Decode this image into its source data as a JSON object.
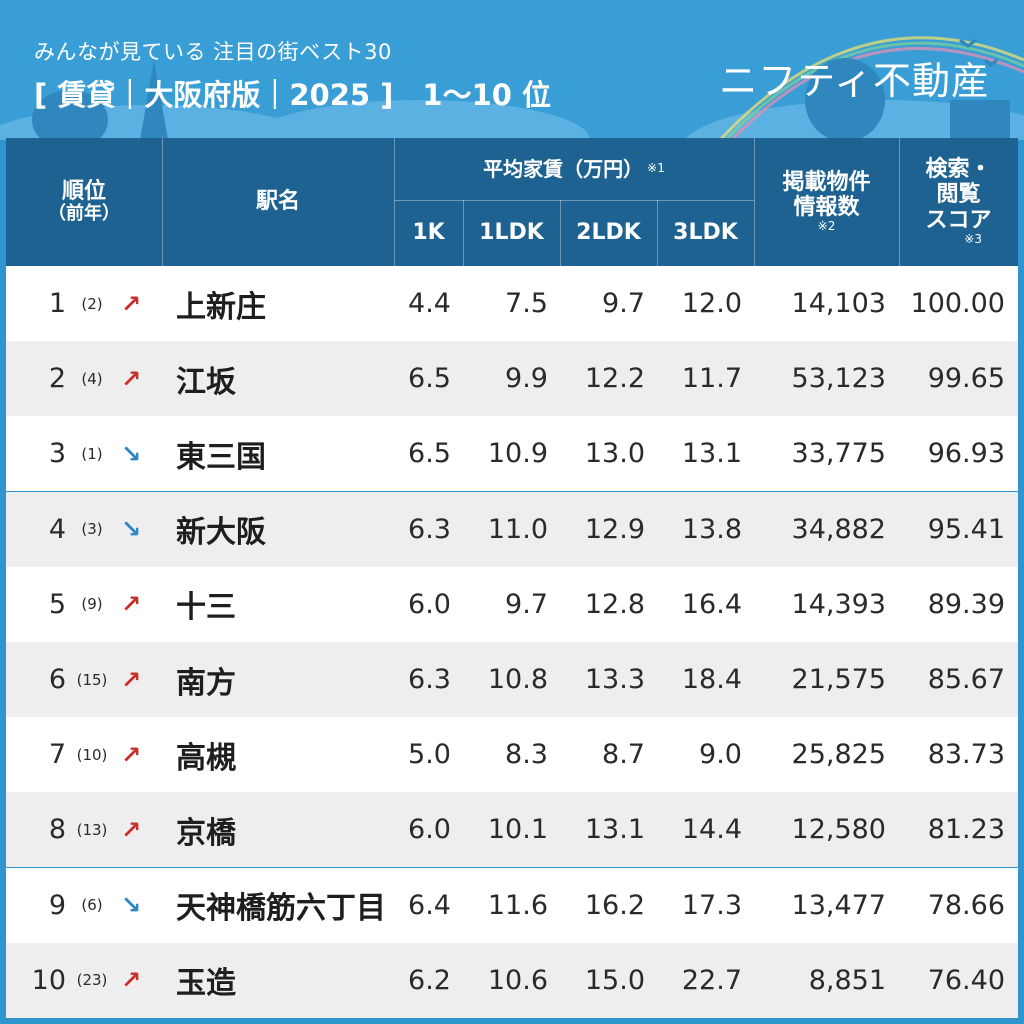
{
  "header": {
    "subtitle": "みんなが見ている 注目の街ベスト30",
    "title": "[ 賃貸｜大阪府版｜2025 ]　1〜10 位",
    "logo": "ニフティ不動産"
  },
  "table": {
    "headers": {
      "rank": "順位",
      "rank_prev": "（前年）",
      "station": "駅名",
      "rent_group": "平均家賃（万円）",
      "rent_note": "※1",
      "k1": "1K",
      "ldk1": "1LDK",
      "ldk2": "2LDK",
      "ldk3": "3LDK",
      "listings_line1": "掲載物件",
      "listings_line2": "情報数",
      "listings_note": "※2",
      "score_line1": "検索・",
      "score_line2": "閲覧",
      "score_line3": "スコア",
      "score_note": "※3"
    },
    "rows": [
      {
        "rank": "1",
        "prev": "(2)",
        "trend": "up",
        "arrow": "↗",
        "station": "上新庄",
        "k1": "4.4",
        "ldk1": "7.5",
        "ldk2": "9.7",
        "ldk3": "12.0",
        "listings": "14,103",
        "score": "100.00"
      },
      {
        "rank": "2",
        "prev": "(4)",
        "trend": "up",
        "arrow": "↗",
        "station": "江坂",
        "k1": "6.5",
        "ldk1": "9.9",
        "ldk2": "12.2",
        "ldk3": "11.7",
        "listings": "53,123",
        "score": "99.65"
      },
      {
        "rank": "3",
        "prev": "(1)",
        "trend": "down",
        "arrow": "↘",
        "station": "東三国",
        "k1": "6.5",
        "ldk1": "10.9",
        "ldk2": "13.0",
        "ldk3": "13.1",
        "listings": "33,775",
        "score": "96.93"
      },
      {
        "rank": "4",
        "prev": "(3)",
        "trend": "down",
        "arrow": "↘",
        "station": "新大阪",
        "k1": "6.3",
        "ldk1": "11.0",
        "ldk2": "12.9",
        "ldk3": "13.8",
        "listings": "34,882",
        "score": "95.41"
      },
      {
        "rank": "5",
        "prev": "(9)",
        "trend": "up",
        "arrow": "↗",
        "station": "十三",
        "k1": "6.0",
        "ldk1": "9.7",
        "ldk2": "12.8",
        "ldk3": "16.4",
        "listings": "14,393",
        "score": "89.39"
      },
      {
        "rank": "6",
        "prev": "(15)",
        "trend": "up",
        "arrow": "↗",
        "station": "南方",
        "k1": "6.3",
        "ldk1": "10.8",
        "ldk2": "13.3",
        "ldk3": "18.4",
        "listings": "21,575",
        "score": "85.67"
      },
      {
        "rank": "7",
        "prev": "(10)",
        "trend": "up",
        "arrow": "↗",
        "station": "高槻",
        "k1": "5.0",
        "ldk1": "8.3",
        "ldk2": "8.7",
        "ldk3": "9.0",
        "listings": "25,825",
        "score": "83.73"
      },
      {
        "rank": "8",
        "prev": "(13)",
        "trend": "up",
        "arrow": "↗",
        "station": "京橋",
        "k1": "6.0",
        "ldk1": "10.1",
        "ldk2": "13.1",
        "ldk3": "14.4",
        "listings": "12,580",
        "score": "81.23"
      },
      {
        "rank": "9",
        "prev": "(6)",
        "trend": "down",
        "arrow": "↘",
        "station": "天神橋筋六丁目",
        "k1": "6.4",
        "ldk1": "11.6",
        "ldk2": "16.2",
        "ldk3": "17.3",
        "listings": "13,477",
        "score": "78.66"
      },
      {
        "rank": "10",
        "prev": "(23)",
        "trend": "up",
        "arrow": "↗",
        "station": "玉造",
        "k1": "6.2",
        "ldk1": "10.6",
        "ldk2": "15.0",
        "ldk3": "22.7",
        "listings": "8,851",
        "score": "76.40"
      }
    ]
  },
  "colors": {
    "background": "#2f95cf",
    "header": "#1c5e8c",
    "up_arrow": "#c9302c",
    "down_arrow": "#2e86c4"
  }
}
